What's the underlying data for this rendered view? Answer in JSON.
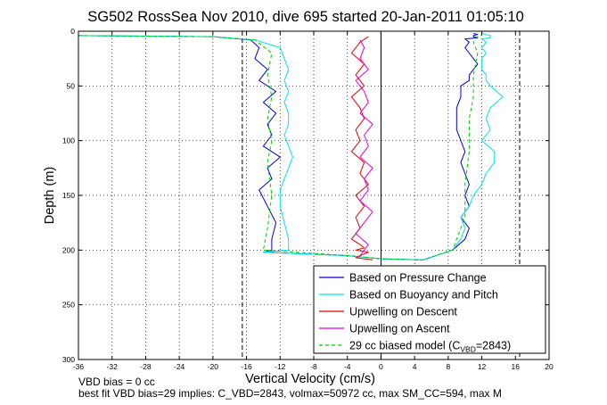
{
  "chart_data": {
    "type": "line",
    "title": "SG502 RossSea Nov 2010, dive 695 started 20-Jan-2011 01:05:10",
    "xlabel": "Vertical Velocity (cm/s)",
    "ylabel": "Depth (m)",
    "xlim": [
      -36,
      20
    ],
    "ylim": [
      300,
      0
    ],
    "x_ticks": [
      -36,
      -32,
      -28,
      -24,
      -20,
      -16,
      -12,
      -8,
      -4,
      0,
      4,
      8,
      12,
      16,
      20
    ],
    "y_ticks": [
      0,
      50,
      100,
      150,
      200,
      250,
      300
    ],
    "grid": true,
    "legend_position": "bottom-right",
    "reference_lines_x": [
      -16.5,
      0,
      16.5
    ],
    "colors": {
      "pressure": "#0000cc",
      "buoyancy": "#00e5e5",
      "descent": "#e00000",
      "ascent": "#e000e0",
      "model": "#00cc00"
    },
    "series": [
      {
        "name": "Based on Pressure Change",
        "style": "solid",
        "x": [
          -36,
          -20,
          -15.5,
          -14.5,
          -15.0,
          -13.5,
          -14.5,
          -12.5,
          -14.0,
          -12.5,
          -13.5,
          -13.0,
          -14.0,
          -12.0,
          -13.5,
          -13.0,
          -14.5,
          -13.5,
          -12.5,
          -13.0,
          -13.0,
          -14.0,
          -4.0,
          0,
          5,
          8.5,
          10.0,
          10.5,
          9.5,
          10.5,
          10.0,
          10.5,
          10.0,
          9.5,
          10.0,
          9.5,
          9.0,
          9.0,
          9.0,
          9.5,
          9.5,
          10.5,
          10.5,
          11.0,
          11.5,
          11.0,
          10.5,
          10.0,
          10.5,
          10.0,
          11.5,
          11.0,
          11.0,
          11.5,
          11.0
        ],
        "y": [
          4,
          5,
          8,
          15,
          25,
          35,
          45,
          55,
          65,
          75,
          85,
          95,
          105,
          115,
          125,
          135,
          145,
          160,
          175,
          190,
          200,
          202,
          205,
          208,
          209,
          200,
          190,
          180,
          170,
          160,
          150,
          140,
          130,
          120,
          110,
          100,
          90,
          80,
          70,
          60,
          50,
          45,
          40,
          35,
          30,
          25,
          20,
          15,
          10,
          7,
          6,
          5,
          4,
          3,
          2
        ]
      },
      {
        "name": "Based on Buoyancy and Pitch",
        "style": "solid",
        "x": [
          -36,
          -20,
          -15.0,
          -12.0,
          -11.5,
          -11.0,
          -11.5,
          -11.0,
          -11.5,
          -11.0,
          -11.0,
          -11.5,
          -11.0,
          -10.5,
          -11.0,
          -11.5,
          -12.0,
          -12.0,
          -11.5,
          -11.0,
          -11.0,
          -14.0,
          -4.0,
          0,
          5,
          8.5,
          9.5,
          10.0,
          9.5,
          10.5,
          11.0,
          12.0,
          12.5,
          13.5,
          13.5,
          12.0,
          13.0,
          12.5,
          13.0,
          14.5,
          13.0,
          12.5,
          12.5,
          12.0,
          12.0,
          12.0,
          12.5,
          12.0,
          12.5,
          12.0,
          13.0,
          13.0,
          13.0,
          12.5,
          12.0
        ],
        "y": [
          4,
          5,
          8,
          15,
          25,
          35,
          45,
          55,
          65,
          75,
          85,
          95,
          105,
          115,
          125,
          135,
          145,
          160,
          175,
          190,
          200,
          202,
          205,
          208,
          209,
          200,
          190,
          180,
          170,
          160,
          150,
          140,
          130,
          120,
          110,
          100,
          90,
          80,
          70,
          60,
          50,
          45,
          40,
          35,
          30,
          25,
          20,
          15,
          10,
          7,
          6,
          5,
          4,
          3,
          2
        ]
      },
      {
        "name": "Upwelling on Descent",
        "style": "solid",
        "x": [
          -1.5,
          -2.5,
          -3.5,
          -2.0,
          -3.0,
          -2.0,
          -3.5,
          -2.5,
          -2.0,
          -3.0,
          -2.5,
          -3.5,
          -2.0,
          -2.5,
          -1.5,
          -3.0,
          -2.0,
          -3.0,
          -2.5,
          -3.5,
          -2.5,
          -2.0,
          -3.0,
          -1.5,
          -2.5,
          -3.0,
          -2.0,
          -1.0
        ],
        "y": [
          5,
          10,
          20,
          30,
          40,
          50,
          60,
          70,
          80,
          90,
          100,
          110,
          120,
          130,
          140,
          150,
          160,
          170,
          180,
          190,
          195,
          198,
          200,
          202,
          205,
          207,
          208,
          209
        ]
      },
      {
        "name": "Upwelling on Ascent",
        "style": "solid",
        "x": [
          -2.5,
          -1.5,
          -3.0,
          -2.0,
          -1.0,
          -2.5,
          -1.5,
          -2.0,
          -1.0,
          -2.5,
          -1.5,
          -2.0,
          -1.0,
          -2.5,
          -1.5,
          -2.0,
          -3.0,
          -1.5,
          -2.5,
          -2.0,
          -2.5
        ],
        "y": [
          205,
          195,
          185,
          175,
          165,
          155,
          145,
          135,
          125,
          115,
          105,
          95,
          85,
          75,
          65,
          55,
          45,
          35,
          25,
          15,
          8
        ]
      },
      {
        "name": "29 cc biased model (C_VBD=2843)",
        "style": "dashed",
        "x": [
          -36,
          -20,
          -15.0,
          -13.0,
          -13.5,
          -13.0,
          -13.5,
          -13.0,
          -13.5,
          -13.0,
          -13.5,
          -14.0,
          -4.0,
          0,
          5,
          8.5,
          10.0,
          10.0,
          10.5,
          10.5,
          11.0,
          11.0,
          11.5,
          11.0,
          11.5,
          12.0
        ],
        "y": [
          4,
          5,
          8,
          20,
          40,
          60,
          80,
          100,
          120,
          150,
          180,
          200,
          205,
          208,
          209,
          200,
          170,
          140,
          110,
          80,
          60,
          40,
          20,
          10,
          5,
          3
        ]
      }
    ]
  },
  "legend": {
    "items": [
      {
        "label": "Based on Pressure Change",
        "color": "#0000cc",
        "dash": false
      },
      {
        "label": "Based on Buoyancy and Pitch",
        "color": "#00e5e5",
        "dash": false
      },
      {
        "label": "Upwelling on Descent",
        "color": "#e00000",
        "dash": false
      },
      {
        "label": "Upwelling on Ascent",
        "color": "#e000e0",
        "dash": false
      },
      {
        "label": "29 cc biased model (C",
        "color": "#00cc00",
        "dash": true,
        "sub": "VBD",
        "suffix": "=2843)"
      }
    ]
  },
  "annotations": {
    "line1": "VBD bias = 0 cc",
    "line2": "best fit VBD bias=29 implies: C_VBD=2843, volmax=50972 cc, max SM_CC=594, max M"
  }
}
